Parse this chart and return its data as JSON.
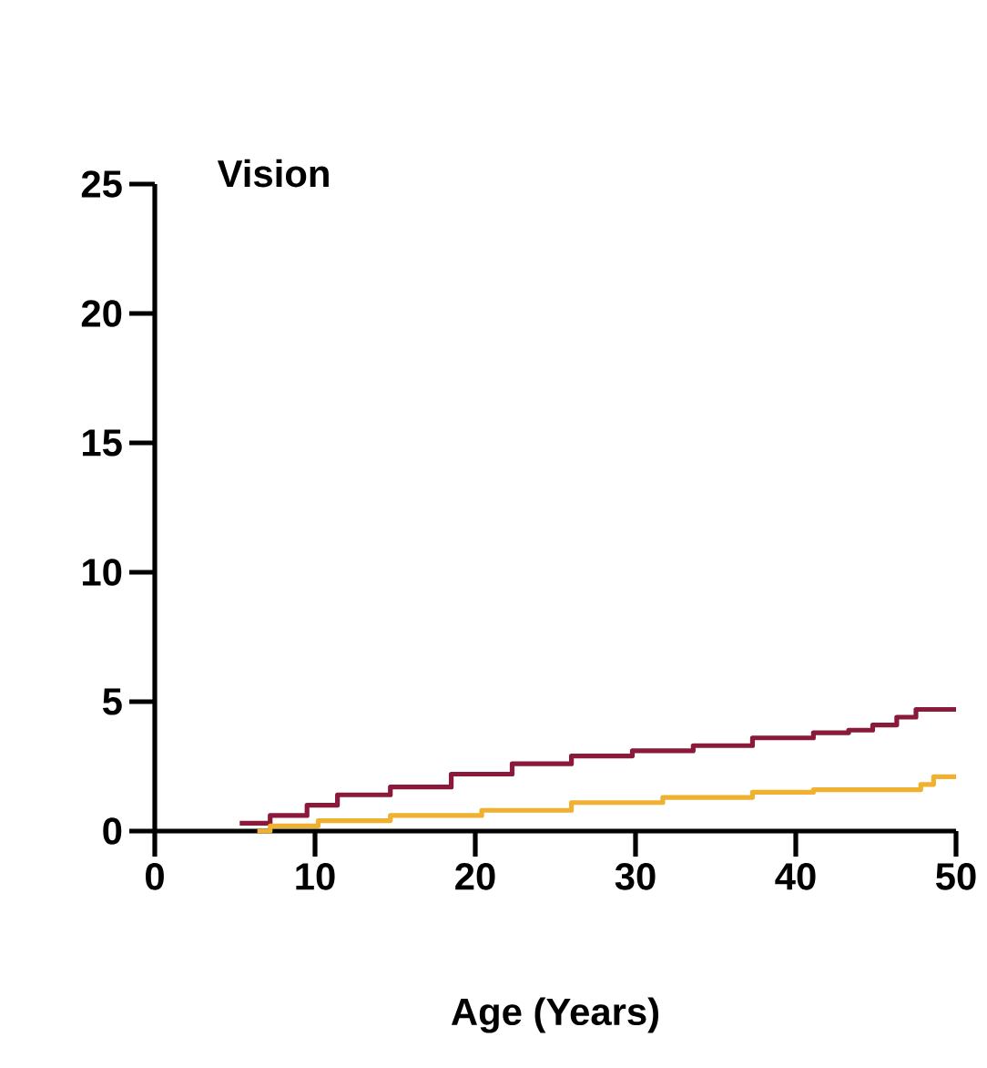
{
  "chart_data": {
    "type": "step",
    "title": "Vision",
    "xlabel": "Age (Years)",
    "xlim": [
      0,
      50
    ],
    "ylim": [
      0,
      25
    ],
    "xticks": [
      0,
      10,
      20,
      30,
      40,
      50
    ],
    "yticks": [
      0,
      5,
      10,
      15,
      20,
      25
    ],
    "grid": false,
    "series": [
      {
        "color": "#8b1a3a",
        "x": [
          5.3,
          7.2,
          9.5,
          11.4,
          14.7,
          18.5,
          22.3,
          26.0,
          29.8,
          33.6,
          37.3,
          41.1,
          43.3,
          44.8,
          46.3,
          47.5,
          50
        ],
        "values": [
          0.3,
          0.6,
          1.0,
          1.4,
          1.7,
          2.2,
          2.6,
          2.9,
          3.1,
          3.3,
          3.6,
          3.8,
          3.9,
          4.1,
          4.4,
          4.7,
          4.7
        ]
      },
      {
        "color": "#f0b030",
        "x": [
          6.4,
          7.2,
          10.2,
          14.7,
          20.4,
          26.0,
          31.7,
          37.3,
          41.1,
          47.8,
          48.6,
          50
        ],
        "values": [
          0,
          0.2,
          0.4,
          0.6,
          0.8,
          1.1,
          1.3,
          1.5,
          1.6,
          1.8,
          2.1,
          2.1
        ]
      }
    ]
  }
}
